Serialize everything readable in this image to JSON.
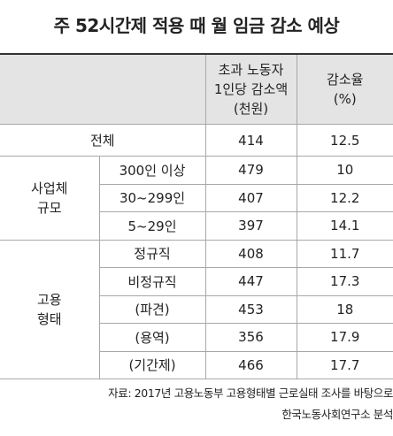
{
  "title": "주 52시간제 적용 때 월 임금 감소 예상",
  "table": {
    "header": [
      [
        "초과 노동자",
        "1인당 감소액",
        "(천원)"
      ],
      [
        "감소율",
        "(%)"
      ]
    ],
    "total": {
      "label": "전체",
      "amount": 414,
      "rate": 12.5
    },
    "groups": [
      {
        "label": [
          "사업체",
          "규모"
        ],
        "rows": [
          {
            "label": "300인 이상",
            "amount": 479,
            "rate": 10
          },
          {
            "label": "30~299인",
            "amount": 407,
            "rate": 12.2
          },
          {
            "label": "5~29인",
            "amount": 397,
            "rate": 14.1
          }
        ]
      },
      {
        "label": [
          "고용",
          "형태"
        ],
        "rows": [
          {
            "label": "정규직",
            "amount": 408,
            "rate": 11.7
          },
          {
            "label": "비정규직",
            "amount": 447,
            "rate": 17.3
          },
          {
            "label": "(파견)",
            "amount": 453,
            "rate": 18
          },
          {
            "label": "(용역)",
            "amount": 356,
            "rate": 17.9
          },
          {
            "label": "(기간제)",
            "amount": 466,
            "rate": 17.7
          }
        ]
      }
    ]
  },
  "source": [
    "자료: 2017년 고용노동부 고용형태별 근로실태 조사를 바탕으로",
    "한국노동사회연구소 분석"
  ]
}
